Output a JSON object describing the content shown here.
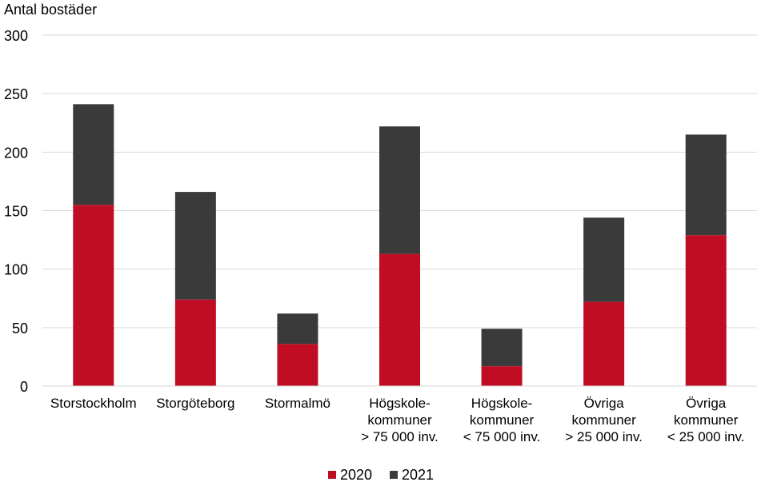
{
  "chart_data": {
    "type": "bar",
    "stacked": true,
    "ylabel": "Antal bostäder",
    "ylim": [
      0,
      300
    ],
    "yticks": [
      0,
      50,
      100,
      150,
      200,
      250,
      300
    ],
    "grid": true,
    "legend_position": "bottom",
    "categories": [
      [
        "Storstockholm"
      ],
      [
        "Storgöteborg"
      ],
      [
        "Stormalmö"
      ],
      [
        "Högskole-",
        "kommuner",
        "> 75 000 inv."
      ],
      [
        "Högskole-",
        "kommuner",
        "< 75 000 inv."
      ],
      [
        "Övriga",
        "kommuner",
        "> 25 000 inv."
      ],
      [
        "Övriga",
        "kommuner",
        "< 25 000 inv."
      ]
    ],
    "series": [
      {
        "name": "2020",
        "color": "#c00d23",
        "values": [
          155,
          74,
          36,
          113,
          17,
          72,
          129
        ]
      },
      {
        "name": "2021",
        "color": "#3a3a3a",
        "values": [
          86,
          92,
          26,
          109,
          32,
          72,
          86
        ]
      }
    ]
  }
}
